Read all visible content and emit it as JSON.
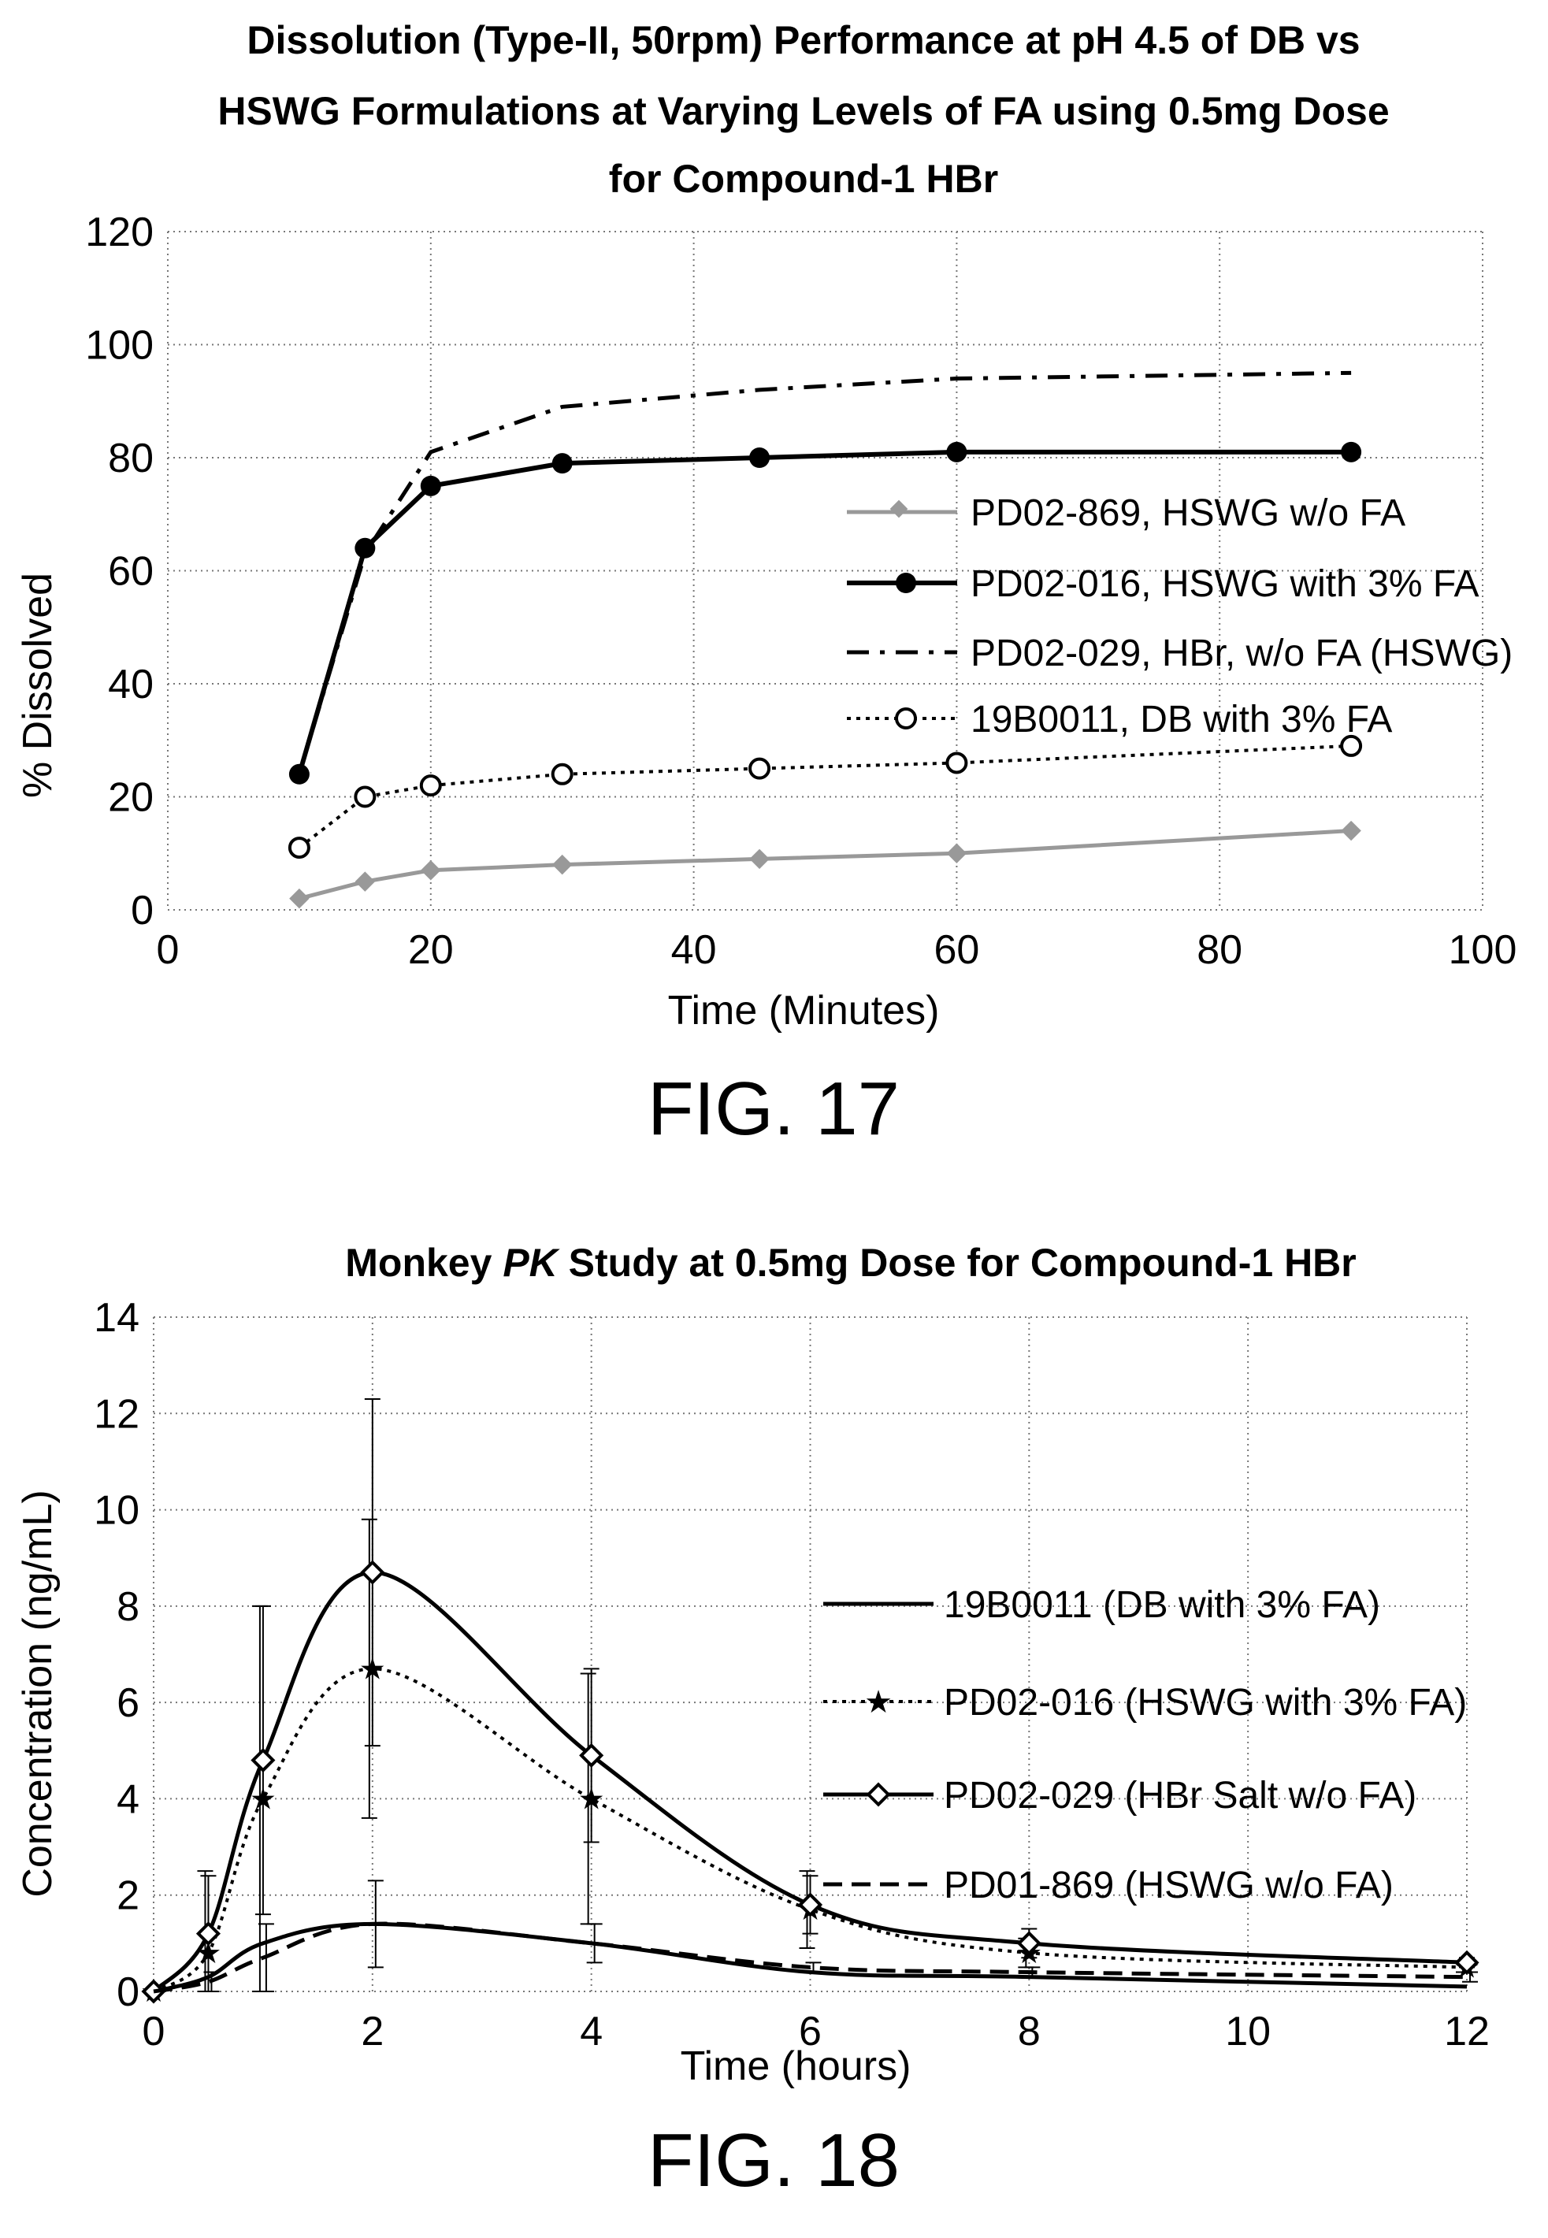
{
  "figures": [
    {
      "caption": "FIG. 17"
    },
    {
      "caption": "FIG. 18"
    }
  ],
  "chart_data": [
    {
      "type": "line",
      "title": "Dissolution (Type-II, 50rpm) Performance at pH 4.5 of DB vs HSWG Formulations at Varying Levels of FA using 0.5mg Dose for Compound-1 HBr",
      "title_lines": [
        "Dissolution (Type-II, 50rpm) Performance at pH 4.5 of DB vs",
        "HSWG Formulations at Varying Levels of FA using 0.5mg Dose",
        "for Compound-1 HBr"
      ],
      "xlabel": "Time (Minutes)",
      "ylabel": "% Dissolved",
      "xlim": [
        0,
        100
      ],
      "ylim": [
        0,
        120
      ],
      "xticks": [
        0,
        20,
        40,
        60,
        80,
        100
      ],
      "yticks": [
        0,
        20,
        40,
        60,
        80,
        100,
        120
      ],
      "grid": true,
      "legend_position": "right",
      "series": [
        {
          "name": "PD02-869, HSWG w/o FA",
          "style": "solid-gray-diamond",
          "color": "#999999",
          "x": [
            10,
            15,
            20,
            30,
            45,
            60,
            90
          ],
          "y": [
            2,
            5,
            7,
            8,
            9,
            10,
            14
          ]
        },
        {
          "name": "PD02-016, HSWG with 3% FA",
          "style": "solid-black-filled-circle",
          "color": "#000000",
          "x": [
            10,
            15,
            20,
            30,
            45,
            60,
            90
          ],
          "y": [
            24,
            64,
            75,
            79,
            80,
            81,
            81
          ]
        },
        {
          "name": "PD02-029, HBr, w/o FA (HSWG)",
          "style": "dash-dot",
          "color": "#000000",
          "x": [
            10,
            15,
            20,
            30,
            45,
            60,
            90
          ],
          "y": [
            24,
            63,
            81,
            89,
            92,
            94,
            95
          ]
        },
        {
          "name": "19B0011, DB with 3% FA",
          "style": "dotted-open-circle",
          "color": "#000000",
          "x": [
            10,
            15,
            20,
            30,
            45,
            60,
            90
          ],
          "y": [
            11,
            20,
            22,
            24,
            25,
            26,
            29
          ]
        }
      ]
    },
    {
      "type": "line",
      "title": "Monkey PK Study at 0.5mg Dose for Compound-1 HBr",
      "title_parts": [
        "Monkey ",
        "PK",
        " Study at 0.5mg Dose for Compound-1 HBr"
      ],
      "xlabel": "Time (hours)",
      "ylabel": "Concentration (ng/mL)",
      "xlim": [
        0,
        12
      ],
      "ylim": [
        0,
        14
      ],
      "xticks": [
        0,
        2,
        4,
        6,
        8,
        10,
        12
      ],
      "yticks": [
        0,
        2,
        4,
        6,
        8,
        10,
        12,
        14
      ],
      "grid": true,
      "legend_position": "right",
      "series": [
        {
          "name": "19B0011 (DB with 3% FA)",
          "style": "solid",
          "color": "#000000",
          "x": [
            0,
            0.5,
            1,
            2,
            4,
            6,
            8,
            12
          ],
          "y": [
            0,
            0.3,
            1.0,
            1.4,
            1.0,
            0.4,
            0.3,
            0.1
          ]
        },
        {
          "name": "PD02-016 (HSWG with 3% FA)",
          "style": "dotted-star",
          "color": "#000000",
          "x": [
            0,
            0.5,
            1,
            2,
            4,
            6,
            8,
            12
          ],
          "y": [
            0,
            0.8,
            4.0,
            6.7,
            4.0,
            1.7,
            0.8,
            0.5
          ],
          "error": [
            0,
            1.7,
            4.0,
            3.1,
            2.6,
            0.8,
            0.3,
            0.1
          ]
        },
        {
          "name": "PD02-029 (HBr Salt w/o FA)",
          "style": "solid-diamond",
          "color": "#000000",
          "x": [
            0,
            0.5,
            1,
            2,
            4,
            6,
            8,
            12
          ],
          "y": [
            0,
            1.2,
            4.8,
            8.7,
            4.9,
            1.8,
            1.0,
            0.6
          ],
          "error": [
            0,
            1.2,
            3.2,
            3.6,
            1.8,
            0.6,
            0.3,
            0.1
          ]
        },
        {
          "name": "PD01-869 (HSWG w/o FA)",
          "style": "dashed",
          "color": "#000000",
          "x": [
            0,
            0.5,
            1,
            2,
            4,
            6,
            8,
            12
          ],
          "y": [
            0,
            0.2,
            0.7,
            1.4,
            1.0,
            0.5,
            0.4,
            0.3
          ],
          "error": [
            0,
            0.2,
            0.7,
            0.9,
            0.4,
            0.1,
            0.1,
            0.1
          ]
        }
      ]
    }
  ]
}
